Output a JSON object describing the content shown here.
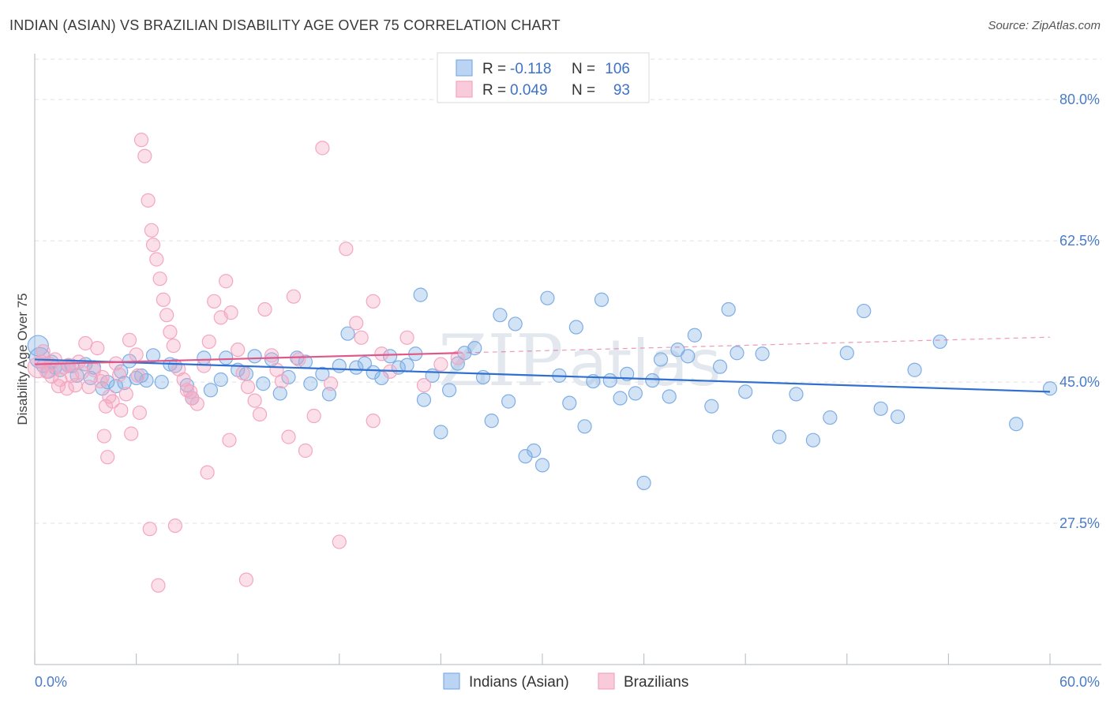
{
  "title": "INDIAN (ASIAN) VS BRAZILIAN DISABILITY AGE OVER 75 CORRELATION CHART",
  "source": "Source: ZipAtlas.com",
  "watermark": {
    "zip": "ZIP",
    "atlas": "atlas"
  },
  "chart_data": {
    "type": "scatter",
    "xlabel": "",
    "ylabel": "Disability Age Over 75",
    "xlim": [
      0,
      60
    ],
    "ylim": [
      10,
      85
    ],
    "x_tick_labels": [
      "0.0%",
      "60.0%"
    ],
    "y_ticks": [
      27.5,
      45.0,
      62.5,
      80.0
    ],
    "y_tick_labels": [
      "27.5%",
      "45.0%",
      "62.5%",
      "80.0%"
    ],
    "grid": true,
    "legend_placement": "top-center",
    "stats_legend": [
      {
        "r_label": "R =",
        "r_value": "-0.118",
        "n_label": "N =",
        "n_value": "106"
      },
      {
        "r_label": "R =",
        "r_value": "0.049",
        "n_label": "N =",
        "n_value": "93"
      }
    ],
    "series": [
      {
        "name": "Indians (Asian)",
        "color": "#7eaee5",
        "line_color": "#2e6fcf",
        "trend": {
          "x": [
            0,
            60
          ],
          "y": [
            47.8,
            43.8
          ]
        },
        "points": [
          [
            0.2,
            49.5
          ],
          [
            0.3,
            48
          ],
          [
            0.5,
            47
          ],
          [
            0.8,
            46.3
          ],
          [
            1,
            47.5
          ],
          [
            1.2,
            46.8
          ],
          [
            1.5,
            46.5
          ],
          [
            2,
            47
          ],
          [
            2.5,
            45.8
          ],
          [
            3,
            47.2
          ],
          [
            3.3,
            45.5
          ],
          [
            3.5,
            46.8
          ],
          [
            4,
            44.2
          ],
          [
            4.3,
            45
          ],
          [
            4.8,
            44.5
          ],
          [
            5.1,
            46.3
          ],
          [
            5.3,
            44.9
          ],
          [
            5.6,
            47.6
          ],
          [
            6,
            45.5
          ],
          [
            6.3,
            45.8
          ],
          [
            6.6,
            45.2
          ],
          [
            7,
            48.3
          ],
          [
            7.5,
            45
          ],
          [
            8,
            47.2
          ],
          [
            8.3,
            47
          ],
          [
            9,
            44.6
          ],
          [
            9.3,
            43
          ],
          [
            10,
            48
          ],
          [
            10.4,
            44
          ],
          [
            11,
            45.3
          ],
          [
            11.3,
            48
          ],
          [
            12,
            46.5
          ],
          [
            12.5,
            46
          ],
          [
            13,
            48.2
          ],
          [
            13.5,
            44.8
          ],
          [
            14,
            47.8
          ],
          [
            14.5,
            43.6
          ],
          [
            15,
            45.6
          ],
          [
            15.5,
            48
          ],
          [
            16,
            47.5
          ],
          [
            16.3,
            44.8
          ],
          [
            17,
            46
          ],
          [
            17.4,
            43.5
          ],
          [
            18,
            47
          ],
          [
            18.5,
            51
          ],
          [
            19,
            46.8
          ],
          [
            19.5,
            47.3
          ],
          [
            20,
            46.2
          ],
          [
            20.5,
            45.5
          ],
          [
            21,
            48.2
          ],
          [
            21.5,
            46.8
          ],
          [
            22,
            47.1
          ],
          [
            22.5,
            48.5
          ],
          [
            22.8,
            55.8
          ],
          [
            23,
            42.8
          ],
          [
            23.5,
            45.8
          ],
          [
            24,
            38.8
          ],
          [
            24.5,
            44
          ],
          [
            25,
            47.3
          ],
          [
            25.4,
            48.6
          ],
          [
            26,
            49.2
          ],
          [
            26.5,
            45.6
          ],
          [
            27,
            40.2
          ],
          [
            27.5,
            53.3
          ],
          [
            28,
            42.6
          ],
          [
            28.4,
            52.2
          ],
          [
            29,
            35.8
          ],
          [
            29.5,
            36.5
          ],
          [
            30,
            34.7
          ],
          [
            30.3,
            55.4
          ],
          [
            31,
            45.8
          ],
          [
            31.6,
            42.4
          ],
          [
            32,
            51.8
          ],
          [
            32.5,
            39.5
          ],
          [
            33,
            45.1
          ],
          [
            33.5,
            55.2
          ],
          [
            34,
            45.2
          ],
          [
            34.6,
            43
          ],
          [
            35,
            46
          ],
          [
            35.5,
            43.6
          ],
          [
            36,
            32.5
          ],
          [
            36.5,
            45.2
          ],
          [
            37,
            47.8
          ],
          [
            37.5,
            43.2
          ],
          [
            38,
            49
          ],
          [
            38.6,
            48.2
          ],
          [
            39,
            50.8
          ],
          [
            40,
            42
          ],
          [
            40.5,
            46.9
          ],
          [
            41,
            54
          ],
          [
            41.5,
            48.6
          ],
          [
            42,
            43.8
          ],
          [
            43,
            48.5
          ],
          [
            44,
            38.2
          ],
          [
            45,
            43.5
          ],
          [
            46,
            37.8
          ],
          [
            47,
            40.6
          ],
          [
            48,
            48.6
          ],
          [
            49,
            53.8
          ],
          [
            50,
            41.7
          ],
          [
            51,
            40.7
          ],
          [
            52,
            46.5
          ],
          [
            53.5,
            50
          ],
          [
            58,
            39.8
          ],
          [
            60,
            44.2
          ],
          [
            2.2,
            47
          ]
        ]
      },
      {
        "name": "Brazilians",
        "color": "#f4a6c0",
        "line_color": "#e0588a",
        "trend": {
          "x": [
            0,
            25
          ],
          "y": [
            47.2,
            48.6
          ]
        },
        "points": [
          [
            0.2,
            46.8
          ],
          [
            0.4,
            47.5
          ],
          [
            0.5,
            48.8
          ],
          [
            0.7,
            46.3
          ],
          [
            0.9,
            47.2
          ],
          [
            1,
            45.7
          ],
          [
            1.2,
            47.8
          ],
          [
            1.4,
            44.5
          ],
          [
            1.5,
            45.3
          ],
          [
            1.7,
            46.8
          ],
          [
            1.9,
            44.2
          ],
          [
            2,
            47.1
          ],
          [
            2.2,
            45.8
          ],
          [
            2.4,
            44.6
          ],
          [
            2.6,
            47.5
          ],
          [
            2.8,
            46.2
          ],
          [
            3,
            49.8
          ],
          [
            3.2,
            44.4
          ],
          [
            3.5,
            46.5
          ],
          [
            3.7,
            49.2
          ],
          [
            3.9,
            45.1
          ],
          [
            4,
            45.6
          ],
          [
            4.2,
            42
          ],
          [
            4.4,
            43.2
          ],
          [
            4.6,
            42.6
          ],
          [
            4.8,
            47.3
          ],
          [
            5,
            45.9
          ],
          [
            5.1,
            41.5
          ],
          [
            5.4,
            43.5
          ],
          [
            5.6,
            50.2
          ],
          [
            6,
            48.4
          ],
          [
            6.1,
            45.8
          ],
          [
            6.3,
            75
          ],
          [
            6.5,
            73
          ],
          [
            6.7,
            67.5
          ],
          [
            6.9,
            63.8
          ],
          [
            7,
            62
          ],
          [
            7.2,
            60.2
          ],
          [
            7.4,
            57.8
          ],
          [
            7.6,
            55.2
          ],
          [
            7.8,
            53.3
          ],
          [
            8,
            51.2
          ],
          [
            8.2,
            49.5
          ],
          [
            8.5,
            46.6
          ],
          [
            8.8,
            45.3
          ],
          [
            9,
            44
          ],
          [
            9.3,
            43
          ],
          [
            9.6,
            42.3
          ],
          [
            10,
            47
          ],
          [
            10.3,
            50
          ],
          [
            10.6,
            55
          ],
          [
            11,
            53
          ],
          [
            11.3,
            57.5
          ],
          [
            11.6,
            53.6
          ],
          [
            12,
            49
          ],
          [
            12.3,
            46.1
          ],
          [
            12.6,
            44.4
          ],
          [
            13,
            42.7
          ],
          [
            13.3,
            41
          ],
          [
            13.6,
            54
          ],
          [
            14,
            48.3
          ],
          [
            14.3,
            46.5
          ],
          [
            14.6,
            45.1
          ],
          [
            15,
            38.2
          ],
          [
            15.3,
            55.6
          ],
          [
            15.6,
            47.8
          ],
          [
            16,
            36.5
          ],
          [
            16.5,
            40.8
          ],
          [
            17,
            74
          ],
          [
            17.5,
            44.8
          ],
          [
            18.4,
            61.5
          ],
          [
            19,
            52.3
          ],
          [
            19.3,
            50.5
          ],
          [
            20,
            55
          ],
          [
            20.5,
            48.5
          ],
          [
            21,
            46.3
          ],
          [
            22,
            50.5
          ],
          [
            23,
            44.6
          ],
          [
            24,
            47.2
          ],
          [
            25,
            48
          ],
          [
            4.1,
            38.3
          ],
          [
            4.3,
            35.7
          ],
          [
            5.7,
            38.6
          ],
          [
            6.2,
            41.2
          ],
          [
            6.8,
            26.8
          ],
          [
            7.3,
            19.8
          ],
          [
            8.3,
            27.2
          ],
          [
            9.2,
            43.8
          ],
          [
            10.2,
            33.8
          ],
          [
            11.5,
            37.8
          ],
          [
            12.5,
            20.5
          ],
          [
            18,
            25.2
          ],
          [
            20,
            40.2
          ]
        ]
      }
    ]
  }
}
